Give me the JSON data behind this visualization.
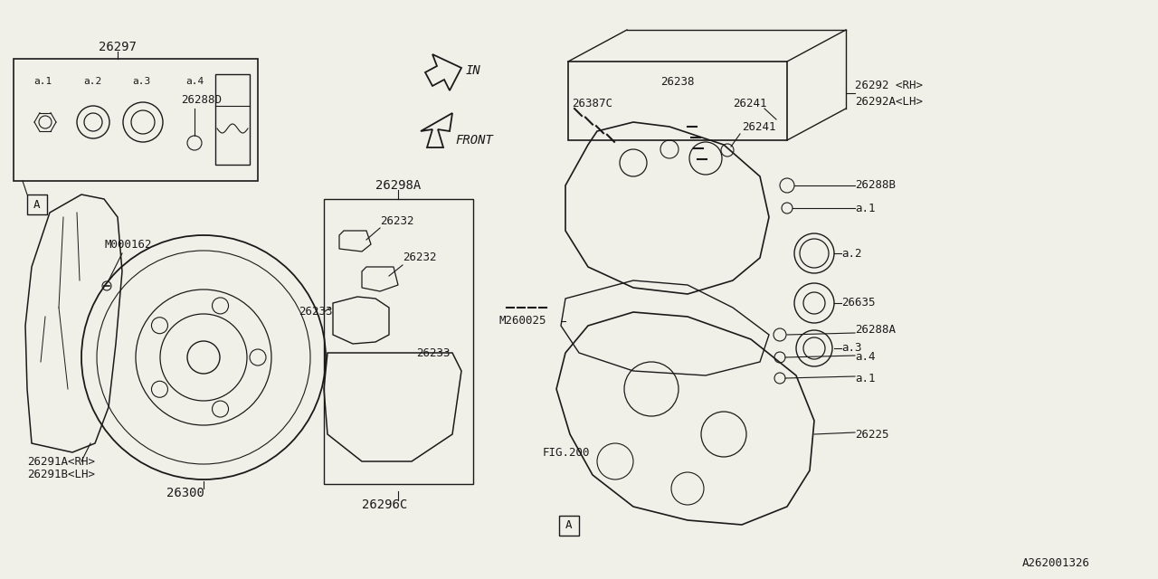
{
  "bg_color": "#f0f0e8",
  "line_color": "#1a1a1a",
  "fig_width": 12.8,
  "fig_height": 6.4,
  "labels": {
    "top_box": "26297",
    "a1": "a.1",
    "a2": "a.2",
    "a3": "a.3",
    "a4": "a.4",
    "sub_num": "26288D",
    "dir_in": "IN",
    "dir_front": "FRONT",
    "dust_bolt": "M000162",
    "cover_A": "A",
    "disc": "26300",
    "cover_rh": "26291A<RH>",
    "cover_lh": "26291B<LH>",
    "pad_assy": "26298A",
    "shim1": "26232",
    "shim2": "26232",
    "clip1": "26233",
    "clip2": "26233",
    "pad_num": "26296C",
    "bolt_c": "26387C",
    "bolt_238": "26238",
    "pin_241": "26241",
    "caliper_rh": "26292 <RH>",
    "caliper_lh": "26292A<LH>",
    "boot_b": "26288B",
    "piston_a1": "a.1",
    "piston_a2": "a.2",
    "piston_635": "26635",
    "piston_a3": "a.3",
    "carrier_bolt": "M260025",
    "carrier_a": "26288A",
    "carrier_a4": "a.4",
    "carrier_a1b": "a.1",
    "knuckle": "26225",
    "fig200": "FIG.200",
    "corner_A": "A",
    "corner_ref": "A262001326"
  }
}
